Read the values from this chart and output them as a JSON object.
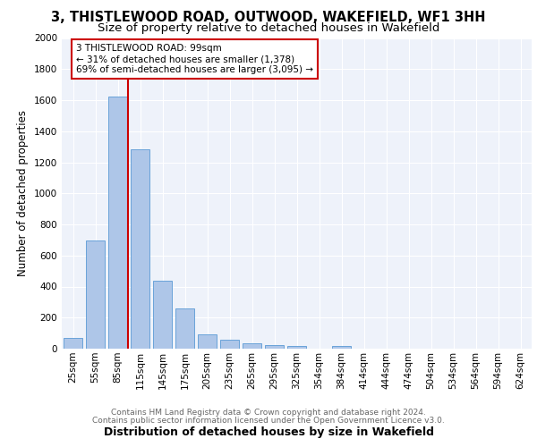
{
  "title": "3, THISTLEWOOD ROAD, OUTWOOD, WAKEFIELD, WF1 3HH",
  "subtitle": "Size of property relative to detached houses in Wakefield",
  "xlabel": "Distribution of detached houses by size in Wakefield",
  "ylabel": "Number of detached properties",
  "categories": [
    "25sqm",
    "55sqm",
    "85sqm",
    "115sqm",
    "145sqm",
    "175sqm",
    "205sqm",
    "235sqm",
    "265sqm",
    "295sqm",
    "325sqm",
    "354sqm",
    "384sqm",
    "414sqm",
    "444sqm",
    "474sqm",
    "504sqm",
    "534sqm",
    "564sqm",
    "594sqm",
    "624sqm"
  ],
  "values": [
    70,
    695,
    1625,
    1285,
    440,
    258,
    93,
    55,
    33,
    25,
    18,
    0,
    20,
    0,
    0,
    0,
    0,
    0,
    0,
    0,
    0
  ],
  "bar_color": "#aec6e8",
  "bar_edge_color": "#5a9ad5",
  "vline_color": "#cc0000",
  "annotation_text": "3 THISTLEWOOD ROAD: 99sqm\n← 31% of detached houses are smaller (1,378)\n69% of semi-detached houses are larger (3,095) →",
  "annotation_box_color": "#cc0000",
  "ylim": [
    0,
    2000
  ],
  "yticks": [
    0,
    200,
    400,
    600,
    800,
    1000,
    1200,
    1400,
    1600,
    1800,
    2000
  ],
  "footnote1": "Contains HM Land Registry data © Crown copyright and database right 2024.",
  "footnote2": "Contains public sector information licensed under the Open Government Licence v3.0.",
  "background_color": "#eef2fa",
  "grid_color": "#ffffff",
  "title_fontsize": 10.5,
  "subtitle_fontsize": 9.5,
  "axis_label_fontsize": 8.5,
  "tick_fontsize": 7.5,
  "annotation_fontsize": 7.5,
  "footnote_fontsize": 6.5
}
